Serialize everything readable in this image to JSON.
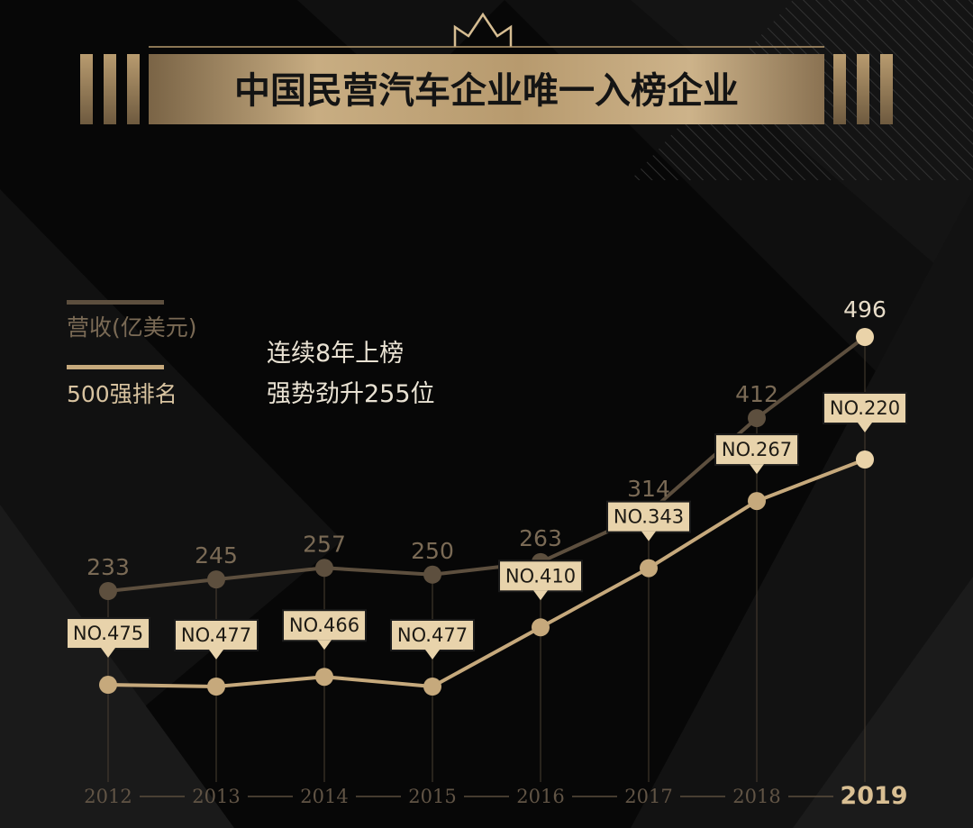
{
  "header": {
    "title": "中国民营汽车企业唯一入榜企业"
  },
  "legend": {
    "revenue": "营收(亿美元)",
    "rank": "500强排名"
  },
  "tagline": {
    "line1": "连续8年上榜",
    "line2": "强势劲升255位"
  },
  "colors": {
    "background": "#070707",
    "gold": "#d9bf93",
    "revenue_line": "#5d4f3e",
    "rank_line": "#c6a97c",
    "label_box": "#e8d3ab"
  },
  "chart_data": {
    "type": "line",
    "categories": [
      "2012",
      "2013",
      "2014",
      "2015",
      "2016",
      "2017",
      "2018",
      "2019"
    ],
    "highlight_category": "2019",
    "series": [
      {
        "name": "营收(亿美元)",
        "values": [
          233,
          245,
          257,
          250,
          263,
          314,
          412,
          496
        ],
        "labels": [
          "233",
          "245",
          "257",
          "250",
          "263",
          "314",
          "412",
          "496"
        ]
      },
      {
        "name": "500强排名",
        "values": [
          475,
          477,
          466,
          477,
          410,
          343,
          267,
          220
        ],
        "labels": [
          "NO.475",
          "NO.477",
          "NO.466",
          "NO.477",
          "NO.410",
          "NO.343",
          "NO.267",
          "NO.220"
        ]
      }
    ],
    "title": "",
    "xlabel": "",
    "ylabel": ""
  }
}
